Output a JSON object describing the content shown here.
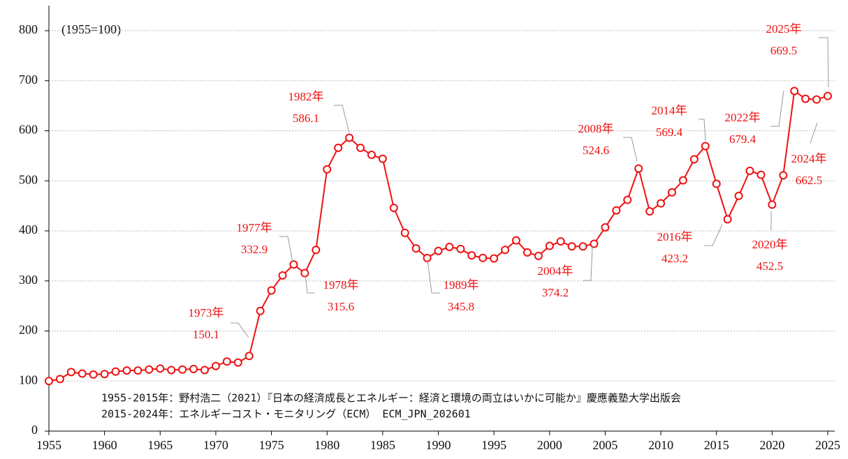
{
  "chart_data": {
    "type": "line",
    "note_top": "(1955=100)",
    "notes": [
      "1955-2015年：野村浩二（2021）『日本の経済成長とエネルギー：経済と環境の両立はいかに可能か』慶應義塾大学出版会",
      "2015-2024年：エネルギーコスト・モニタリング（ECM） ECM_JPN_202601"
    ],
    "x": [
      1955,
      1956,
      1957,
      1958,
      1959,
      1960,
      1961,
      1962,
      1963,
      1964,
      1965,
      1966,
      1967,
      1968,
      1969,
      1970,
      1971,
      1972,
      1973,
      1974,
      1975,
      1976,
      1977,
      1978,
      1979,
      1980,
      1981,
      1982,
      1983,
      1984,
      1985,
      1986,
      1987,
      1988,
      1989,
      1990,
      1991,
      1992,
      1993,
      1994,
      1995,
      1996,
      1997,
      1998,
      1999,
      2000,
      2001,
      2002,
      2003,
      2004,
      2005,
      2006,
      2007,
      2008,
      2009,
      2010,
      2011,
      2012,
      2013,
      2014,
      2015,
      2016,
      2017,
      2018,
      2019,
      2020,
      2021,
      2022,
      2023,
      2024,
      2025
    ],
    "series": [
      {
        "color": "#ee1111",
        "values": [
          100,
          104,
          118,
          115,
          113,
          114,
          119,
          121,
          121,
          123,
          125,
          122,
          123,
          124,
          122,
          130,
          139,
          137,
          150.1,
          240,
          281,
          311,
          332.9,
          315.6,
          362,
          523,
          566,
          586.1,
          566,
          552,
          544,
          446,
          396,
          365,
          345.8,
          360,
          368,
          364,
          351,
          346,
          345,
          362,
          381,
          357,
          350,
          370,
          379,
          369,
          369,
          374.2,
          407,
          441,
          462,
          524.6,
          439,
          455,
          477,
          501,
          543,
          569.4,
          494,
          423.2,
          470,
          520,
          512,
          452.5,
          511,
          679.4,
          664,
          662.5,
          669.5
        ]
      }
    ],
    "annotations": [
      {
        "label": "1973年",
        "value": 150.1
      },
      {
        "label": "1977年",
        "value": 332.9
      },
      {
        "label": "1978年",
        "value": 315.6
      },
      {
        "label": "1982年",
        "value": 586.1
      },
      {
        "label": "1989年",
        "value": 345.8
      },
      {
        "label": "2004年",
        "value": 374.2
      },
      {
        "label": "2008年",
        "value": 524.6
      },
      {
        "label": "2014年",
        "value": 569.4
      },
      {
        "label": "2016年",
        "value": 423.2
      },
      {
        "label": "2020年",
        "value": 452.5
      },
      {
        "label": "2022年",
        "value": 679.4
      },
      {
        "label": "2024年",
        "value": 662.5
      },
      {
        "label": "2025年",
        "value": 669.5
      }
    ],
    "xlim": [
      1955,
      2025
    ],
    "xticks": [
      1955,
      1960,
      1965,
      1970,
      1975,
      1980,
      1985,
      1990,
      1995,
      2000,
      2005,
      2010,
      2015,
      2020,
      2025
    ],
    "ylim": [
      0,
      800
    ],
    "yticks": [
      0,
      100,
      200,
      300,
      400,
      500,
      600,
      700,
      800
    ],
    "grid": true
  }
}
